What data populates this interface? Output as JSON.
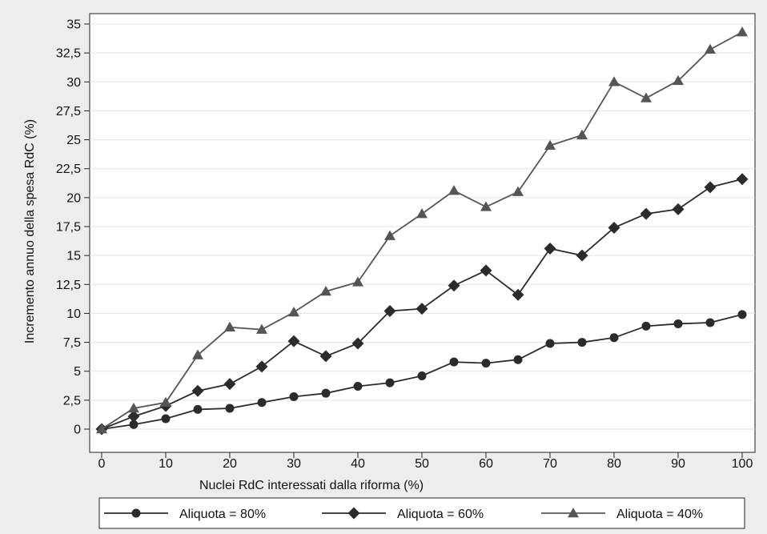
{
  "chart_data": {
    "type": "line",
    "title": "",
    "xlabel": "Nuclei RdC interessati dalla riforma (%)",
    "ylabel": "Incremento annuo della spesa RdC (%)",
    "xlim": [
      0,
      100
    ],
    "ylim": [
      0,
      35
    ],
    "x": [
      0,
      5,
      10,
      15,
      20,
      25,
      30,
      35,
      40,
      45,
      50,
      55,
      60,
      65,
      70,
      75,
      80,
      85,
      90,
      95,
      100
    ],
    "x_ticks": [
      0,
      10,
      20,
      30,
      40,
      50,
      60,
      70,
      80,
      90,
      100
    ],
    "x_tick_labels": [
      "0",
      "10",
      "20",
      "30",
      "40",
      "50",
      "60",
      "70",
      "80",
      "90",
      "100"
    ],
    "y_ticks": [
      0,
      2.5,
      5,
      7.5,
      10,
      12.5,
      15,
      17.5,
      20,
      22.5,
      25,
      27.5,
      30,
      32.5,
      35
    ],
    "y_tick_labels": [
      "0",
      "2,5",
      "5",
      "7,5",
      "10",
      "12,5",
      "15",
      "17,5",
      "20",
      "22,5",
      "25",
      "27,5",
      "30",
      "32,5",
      "35"
    ],
    "grid": "horizontal",
    "legend_position": "bottom",
    "series": [
      {
        "name": "Aliquota = 80%",
        "marker": "circle",
        "color": "#2b2b2b",
        "values": [
          0,
          0.4,
          0.9,
          1.7,
          1.8,
          2.3,
          2.8,
          3.1,
          3.7,
          4.0,
          4.6,
          5.8,
          5.7,
          6.0,
          7.4,
          7.5,
          7.9,
          8.9,
          9.1,
          9.2,
          9.9
        ]
      },
      {
        "name": "Aliquota = 60%",
        "marker": "diamond",
        "color": "#2b2b2b",
        "values": [
          0,
          1.1,
          2.0,
          3.3,
          3.9,
          5.4,
          7.6,
          6.3,
          7.4,
          10.2,
          10.4,
          12.4,
          13.7,
          11.6,
          15.6,
          15.0,
          17.4,
          18.6,
          19.0,
          20.9,
          21.6
        ]
      },
      {
        "name": "Aliquota = 40%",
        "marker": "triangle",
        "color": "#555555",
        "values": [
          0,
          1.8,
          2.3,
          6.4,
          8.8,
          8.6,
          10.1,
          11.9,
          12.7,
          16.7,
          18.6,
          20.6,
          19.2,
          20.5,
          24.5,
          25.4,
          30.0,
          28.6,
          30.1,
          32.8,
          34.3
        ]
      }
    ]
  }
}
